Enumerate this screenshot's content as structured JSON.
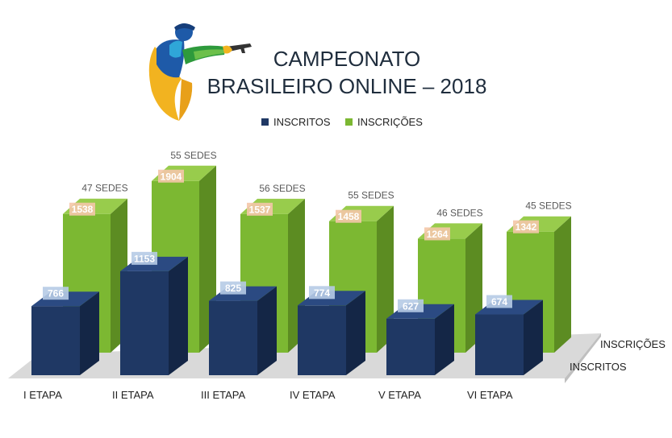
{
  "header": {
    "title_line1": "CAMPEONATO",
    "title_line2": "BRASILEIRO ONLINE – 2018"
  },
  "colors": {
    "inscritos_front": "#1f3864",
    "inscritos_side": "#142646",
    "inscritos_top": "#2b4a82",
    "inscricoes_front": "#7cb832",
    "inscricoes_side": "#5c8c22",
    "inscricoes_top": "#98cc4c",
    "floor": "#d9d9d9",
    "label_blue_bg": "#b6cbe6",
    "label_orange_bg": "#f4c7a8"
  },
  "logo": {
    "icon": "shooter-logo-icon"
  },
  "chart_data": {
    "type": "bar",
    "categories": [
      "I ETAPA",
      "II ETAPA",
      "III ETAPA",
      "IV ETAPA",
      "V ETAPA",
      "VI ETAPA"
    ],
    "series": [
      {
        "name": "INSCRITOS",
        "values": [
          766,
          1153,
          825,
          774,
          627,
          674
        ]
      },
      {
        "name": "INSCRIÇÕES",
        "values": [
          1538,
          1904,
          1537,
          1458,
          1264,
          1342
        ]
      }
    ],
    "annotations": [
      "47 SEDES",
      "55 SEDES",
      "56 SEDES",
      "55 SEDES",
      "46 SEDES",
      "45 SEDES"
    ],
    "depth_axis_labels": [
      "INSCRIÇÕES",
      "INSCRITOS"
    ],
    "legend": "top",
    "grid": false
  }
}
